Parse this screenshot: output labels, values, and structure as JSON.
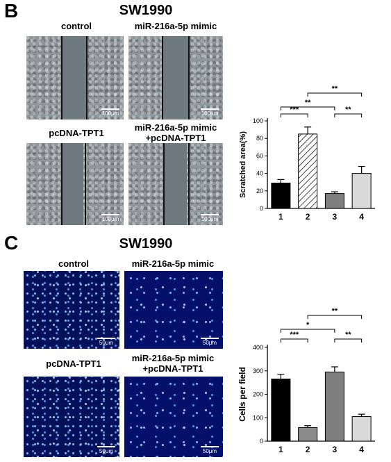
{
  "panel_b": {
    "letter": "B",
    "title": "SW1990",
    "images": [
      {
        "label": [
          "control"
        ],
        "scale": "100μm"
      },
      {
        "label": [
          "miR-216a-5p mimic"
        ],
        "scale": "100μm"
      },
      {
        "label": [
          "pcDNA-TPT1"
        ],
        "scale": "100μm"
      },
      {
        "label": [
          "miR-216a-5p mimic",
          "+pcDNA-TPT1"
        ],
        "scale": "100μm"
      }
    ]
  },
  "panel_c": {
    "letter": "C",
    "title": "SW1990",
    "images": [
      {
        "label": [
          "control"
        ],
        "scale": "50μm"
      },
      {
        "label": [
          "miR-216a-5p mimic"
        ],
        "scale": "50μm"
      },
      {
        "label": [
          "pcDNA-TPT1"
        ],
        "scale": "50μm"
      },
      {
        "label": [
          "miR-216a-5p mimic",
          "+pcDNA-TPT1"
        ],
        "scale": "50μm"
      }
    ]
  },
  "chart_data": [
    {
      "type": "bar",
      "categories": [
        "1",
        "2",
        "3",
        "4"
      ],
      "values": [
        29,
        85,
        17,
        40
      ],
      "errors": [
        4,
        8,
        2,
        8
      ],
      "fills": [
        "#000000",
        "hatch",
        "#7f7f7f",
        "#d9d9d9"
      ],
      "ylabel": "Scratched area(%)",
      "ylim": [
        0,
        100
      ],
      "yticks": [
        0,
        20,
        40,
        60,
        80,
        100
      ],
      "significance": [
        {
          "from": 1,
          "to": 2,
          "label": "***"
        },
        {
          "from": 1,
          "to": 3,
          "label": "**"
        },
        {
          "from": 2,
          "to": 4,
          "label": "**"
        },
        {
          "from": 3,
          "to": 4,
          "label": "**"
        }
      ]
    },
    {
      "type": "bar",
      "categories": [
        "1",
        "2",
        "3",
        "4"
      ],
      "values": [
        265,
        58,
        295,
        105
      ],
      "errors": [
        20,
        8,
        22,
        10
      ],
      "fills": [
        "#000000",
        "#8c8c8c",
        "#7f7f7f",
        "#d9d9d9"
      ],
      "ylabel": "Cells per field",
      "ylim": [
        0,
        400
      ],
      "yticks": [
        0,
        100,
        200,
        300,
        400
      ],
      "significance": [
        {
          "from": 1,
          "to": 2,
          "label": "***"
        },
        {
          "from": 1,
          "to": 3,
          "label": "*"
        },
        {
          "from": 2,
          "to": 4,
          "label": "**"
        },
        {
          "from": 3,
          "to": 4,
          "label": "**"
        }
      ]
    }
  ]
}
